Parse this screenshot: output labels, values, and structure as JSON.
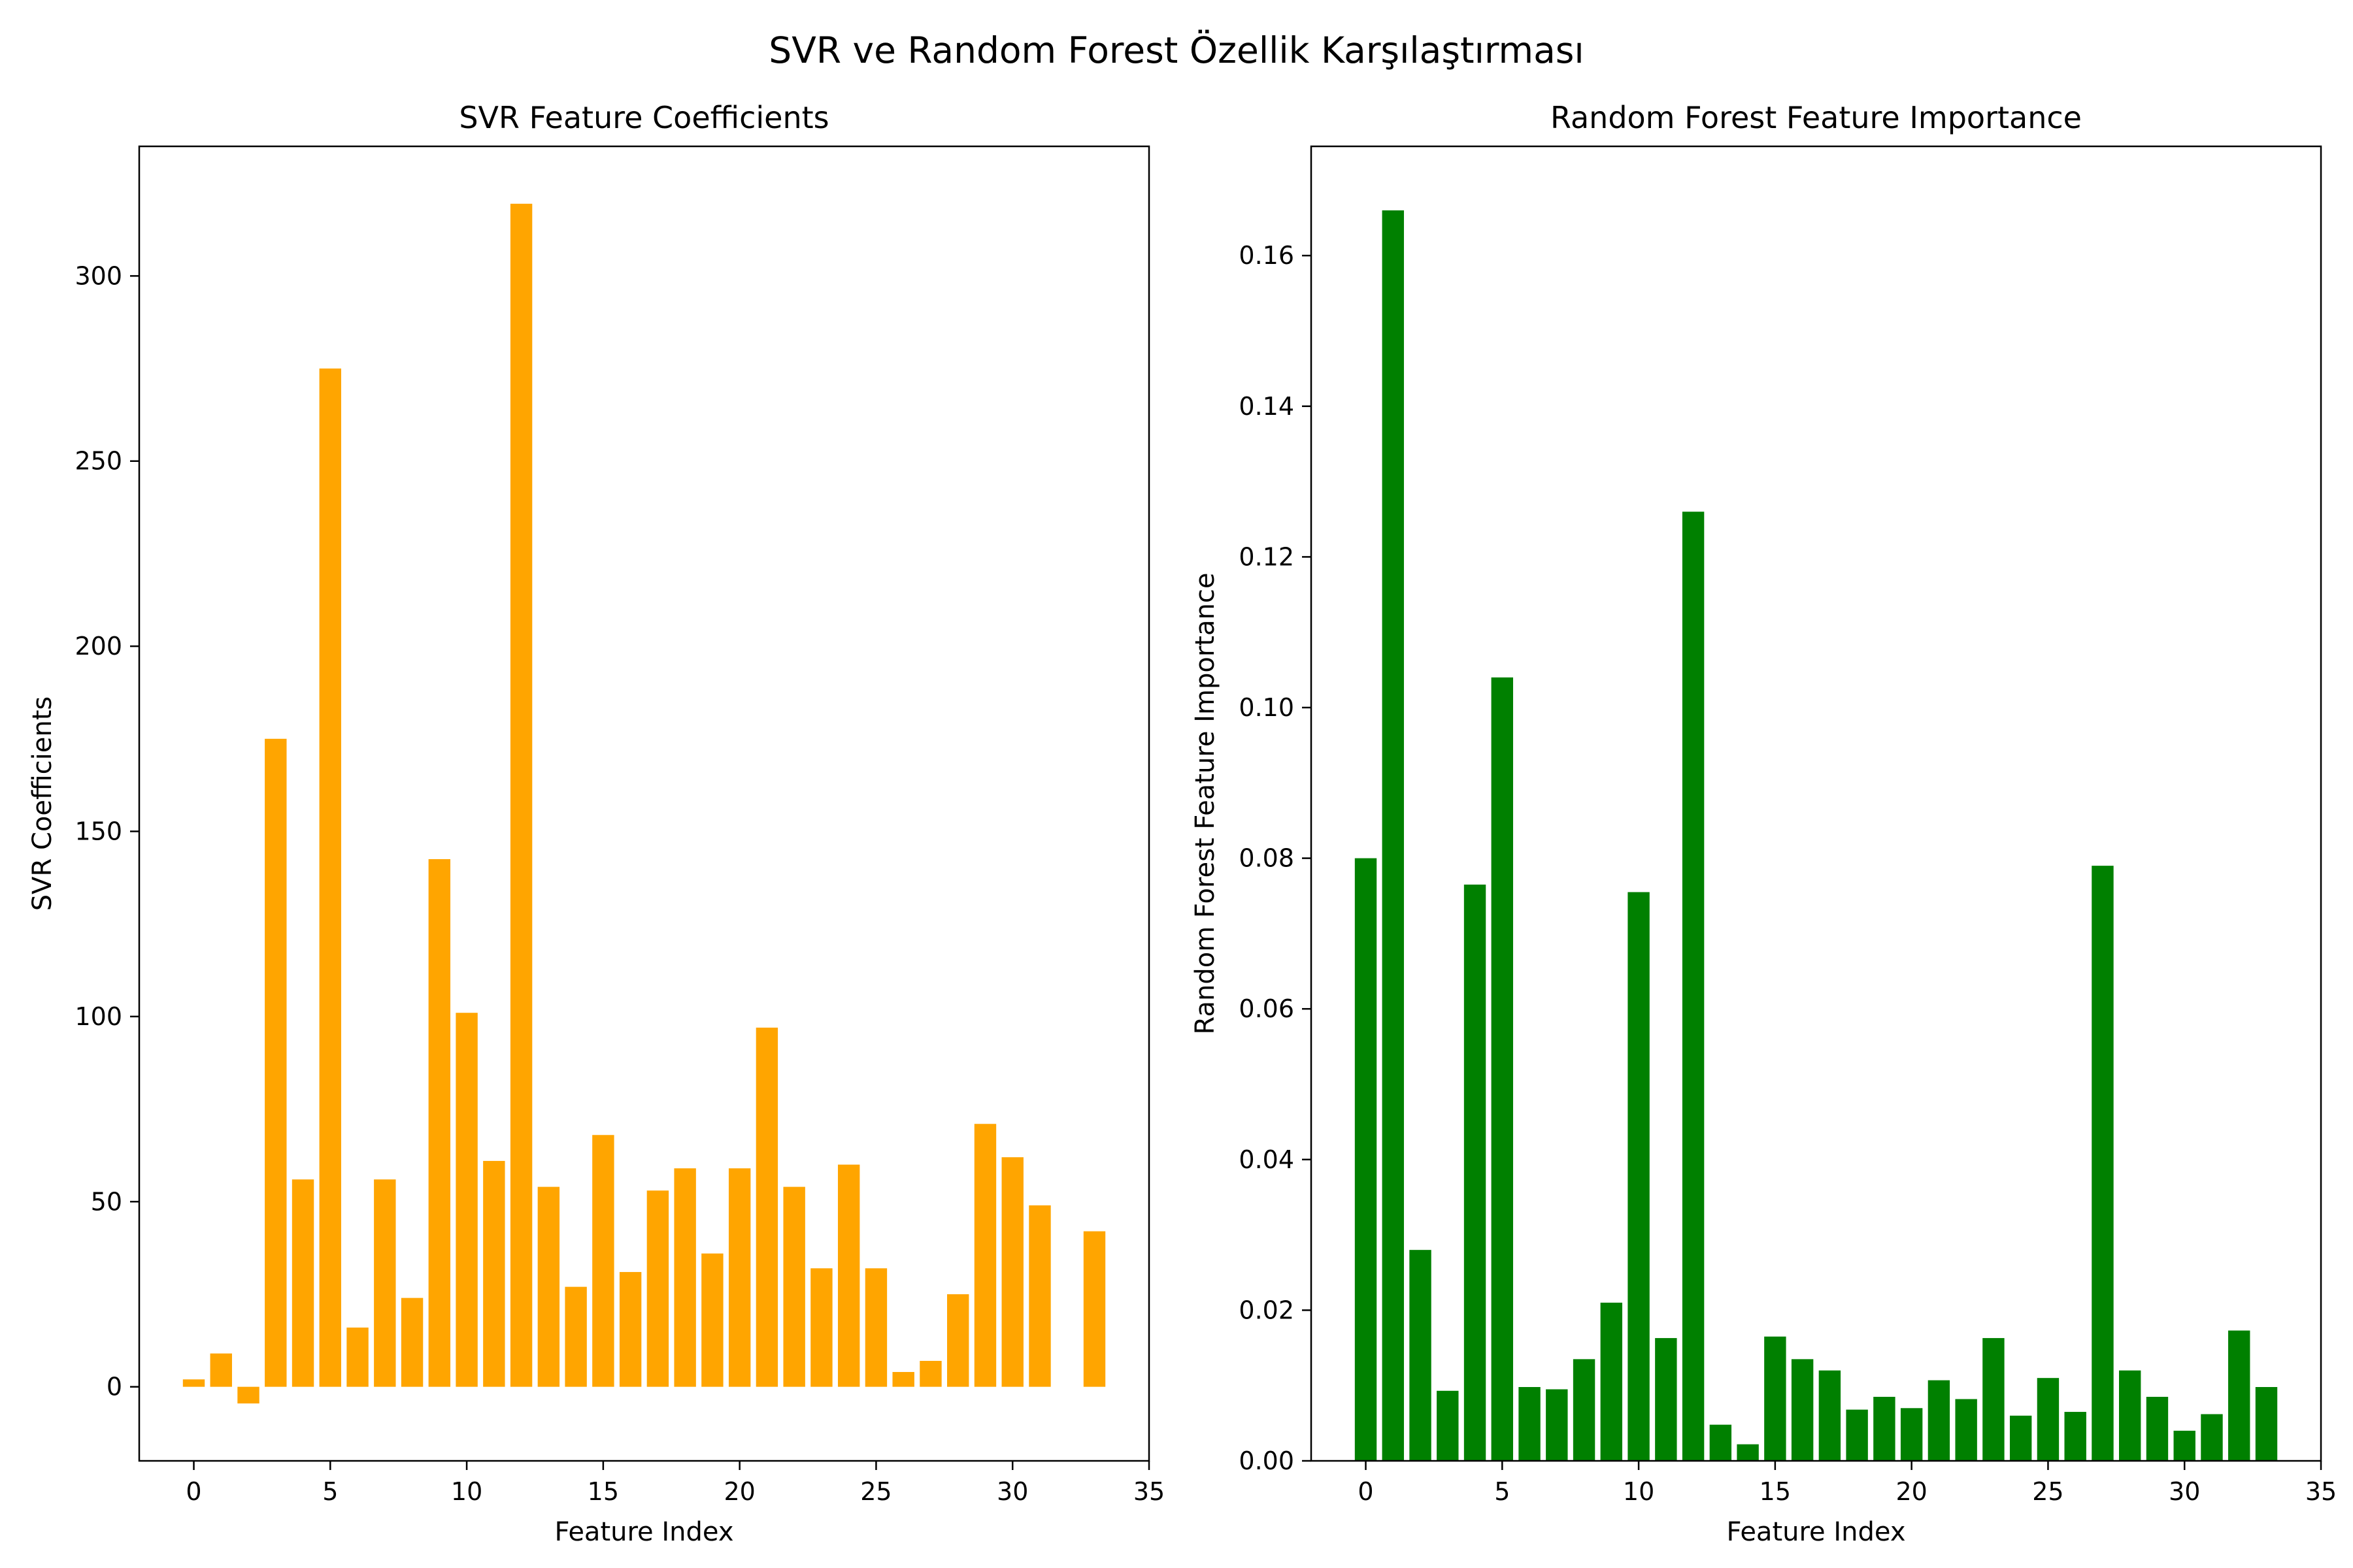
{
  "figure": {
    "suptitle": "SVR ve Random Forest Özellik Karşılaştırması"
  },
  "chart_data": [
    {
      "type": "bar",
      "title": "SVR Feature Coefficients",
      "xlabel": "Feature Index",
      "ylabel": "SVR Coefficients",
      "color": "#ffa500",
      "xlim": [
        -2,
        35
      ],
      "ylim": [
        -20,
        335
      ],
      "xticks": [
        0,
        5,
        10,
        15,
        20,
        25,
        30,
        35
      ],
      "yticks": [
        0,
        50,
        100,
        150,
        200,
        250,
        300
      ],
      "grid": false,
      "x": [
        0,
        1,
        2,
        3,
        4,
        5,
        6,
        7,
        8,
        9,
        10,
        11,
        12,
        13,
        14,
        15,
        16,
        17,
        18,
        19,
        20,
        21,
        22,
        23,
        24,
        25,
        26,
        27,
        28,
        29,
        30,
        31,
        32,
        33
      ],
      "values": [
        2,
        9,
        -4.5,
        175,
        56,
        275,
        16,
        56,
        24,
        142.5,
        101,
        61,
        319.5,
        54,
        27,
        68,
        31,
        53,
        59,
        36,
        59,
        97,
        54,
        32,
        60,
        32,
        4,
        7,
        25,
        71,
        62,
        49,
        0,
        42
      ]
    },
    {
      "type": "bar",
      "title": "Random Forest Feature Importance",
      "xlabel": "Feature Index",
      "ylabel": "Random Forest Feature Importance",
      "color": "#008000",
      "xlim": [
        -2,
        35
      ],
      "ylim": [
        0,
        0.1745
      ],
      "xticks": [
        0,
        5,
        10,
        15,
        20,
        25,
        30,
        35
      ],
      "yticks": [
        "0.00",
        "0.02",
        "0.04",
        "0.06",
        "0.08",
        "0.10",
        "0.12",
        "0.14",
        "0.16"
      ],
      "grid": false,
      "x": [
        0,
        1,
        2,
        3,
        4,
        5,
        6,
        7,
        8,
        9,
        10,
        11,
        12,
        13,
        14,
        15,
        16,
        17,
        18,
        19,
        20,
        21,
        22,
        23,
        24,
        25,
        26,
        27,
        28,
        29,
        30,
        31,
        32,
        33
      ],
      "values": [
        0.08,
        0.166,
        0.028,
        0.0093,
        0.0765,
        0.104,
        0.0098,
        0.0095,
        0.0135,
        0.021,
        0.0755,
        0.0163,
        0.126,
        0.0048,
        0.0022,
        0.0165,
        0.0135,
        0.012,
        0.0068,
        0.0085,
        0.007,
        0.0107,
        0.0082,
        0.0163,
        0.006,
        0.011,
        0.0065,
        0.079,
        0.012,
        0.0085,
        0.004,
        0.0062,
        0.0173,
        0.0098
      ]
    }
  ]
}
